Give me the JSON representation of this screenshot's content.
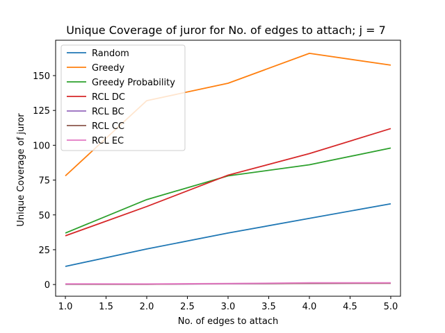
{
  "chart_data": {
    "type": "line",
    "title": "Unique Coverage of juror for No. of edges to attach; j = 7",
    "xlabel": "No. of edges to attach",
    "ylabel": "Unique Coverage of juror",
    "x": [
      1.0,
      2.0,
      3.0,
      4.0,
      5.0
    ],
    "xlim": [
      0.88,
      5.12
    ],
    "ylim": [
      -8.4,
      175.4
    ],
    "xticks": [
      "1.0",
      "1.5",
      "2.0",
      "2.5",
      "3.0",
      "3.5",
      "4.0",
      "4.5",
      "5.0"
    ],
    "xtick_values": [
      1.0,
      1.5,
      2.0,
      2.5,
      3.0,
      3.5,
      4.0,
      4.5,
      5.0
    ],
    "yticks": [
      "0",
      "25",
      "50",
      "75",
      "100",
      "125",
      "150"
    ],
    "ytick_values": [
      0,
      25,
      50,
      75,
      100,
      125,
      150
    ],
    "grid": false,
    "legend_position": "top-left",
    "series": [
      {
        "name": "Random",
        "color": "#1f77b4",
        "values": [
          13,
          25.5,
          37,
          47.5,
          58
        ]
      },
      {
        "name": "Greedy",
        "color": "#ff7f0e",
        "values": [
          78,
          132,
          144.5,
          166,
          157.5
        ]
      },
      {
        "name": "Greedy Probability",
        "color": "#2ca02c",
        "values": [
          37,
          61,
          78,
          86,
          98
        ]
      },
      {
        "name": "RCL DC",
        "color": "#d62728",
        "values": [
          35,
          56,
          78.5,
          94,
          112
        ]
      },
      {
        "name": "RCL BC",
        "color": "#9467bd",
        "values": [
          0.2,
          0.2,
          0.5,
          0.8,
          1.0
        ]
      },
      {
        "name": "RCL CC",
        "color": "#8c564b",
        "values": [
          0.3,
          0.2,
          0.6,
          0.8,
          0.9
        ]
      },
      {
        "name": "RCL EC",
        "color": "#e377c2",
        "values": [
          0.5,
          0.4,
          0.7,
          1.2,
          1.2
        ]
      }
    ]
  }
}
